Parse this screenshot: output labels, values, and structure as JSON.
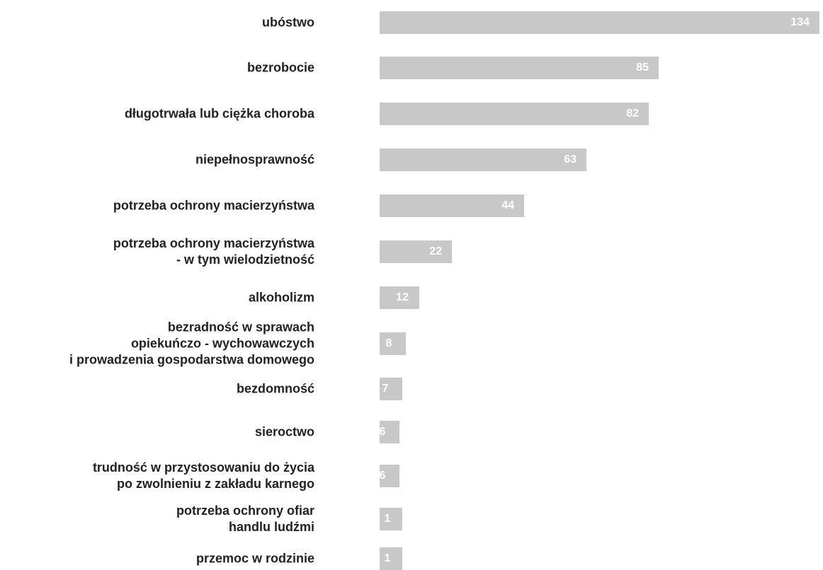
{
  "chart_data": {
    "type": "bar",
    "orientation": "horizontal",
    "categories": [
      "ubóstwo",
      "bezrobocie",
      "długotrwała lub ciężka choroba",
      "niepełnosprawność",
      "potrzeba ochrony macierzyństwa",
      "potrzeba ochrony macierzyństwa\n- w tym wielodzietność",
      "alkoholizm",
      "bezradność w sprawach\nopiekuńczo - wychowawczych\ni prowadzenia gospodarstwa domowego",
      "bezdomność",
      "sieroctwo",
      "trudność w przystosowaniu do życia\npo zwolnieniu z zakładu karnego",
      "potrzeba ochrony ofiar\nhandlu ludźmi",
      "przemoc w rodzinie"
    ],
    "values": [
      134,
      85,
      82,
      63,
      44,
      22,
      12,
      8,
      7,
      6,
      6,
      1,
      1
    ],
    "xlim": [
      0,
      134
    ],
    "grid": false,
    "legend": "none",
    "colors": {
      "bar": "#c8c8c8",
      "value_label": "#ffffff",
      "category_label": "#222222"
    }
  }
}
